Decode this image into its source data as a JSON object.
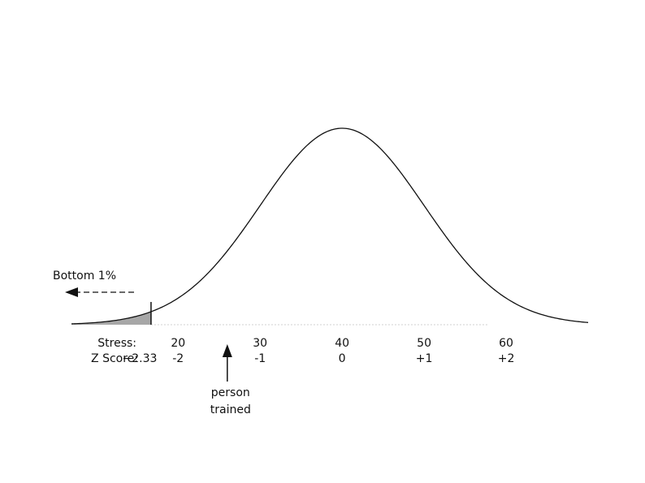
{
  "chart_data": {
    "type": "area",
    "distribution": "normal",
    "mean": 40,
    "sd": 10,
    "xlim": [
      7,
      70
    ],
    "shaded_region": {
      "from": 7,
      "to": 16.7,
      "label": "Bottom 1%"
    },
    "stress_row": {
      "label": "Stress:",
      "ticks": [
        {
          "value": 20,
          "label": "20"
        },
        {
          "value": 30,
          "label": "30"
        },
        {
          "value": 40,
          "label": "40"
        },
        {
          "value": 50,
          "label": "50"
        },
        {
          "value": 60,
          "label": "60"
        }
      ]
    },
    "z_row": {
      "label": "Z Score:",
      "ticks": [
        {
          "value": 16.7,
          "label": "−2.33"
        },
        {
          "value": 20,
          "label": "-2"
        },
        {
          "value": 30,
          "label": "-1"
        },
        {
          "value": 40,
          "label": "0"
        },
        {
          "value": 50,
          "label": "+1"
        },
        {
          "value": 60,
          "label": "+2"
        }
      ]
    },
    "annotations": [
      {
        "id": "person-trained",
        "x": 26,
        "lines": [
          "person",
          "trained"
        ]
      }
    ]
  }
}
